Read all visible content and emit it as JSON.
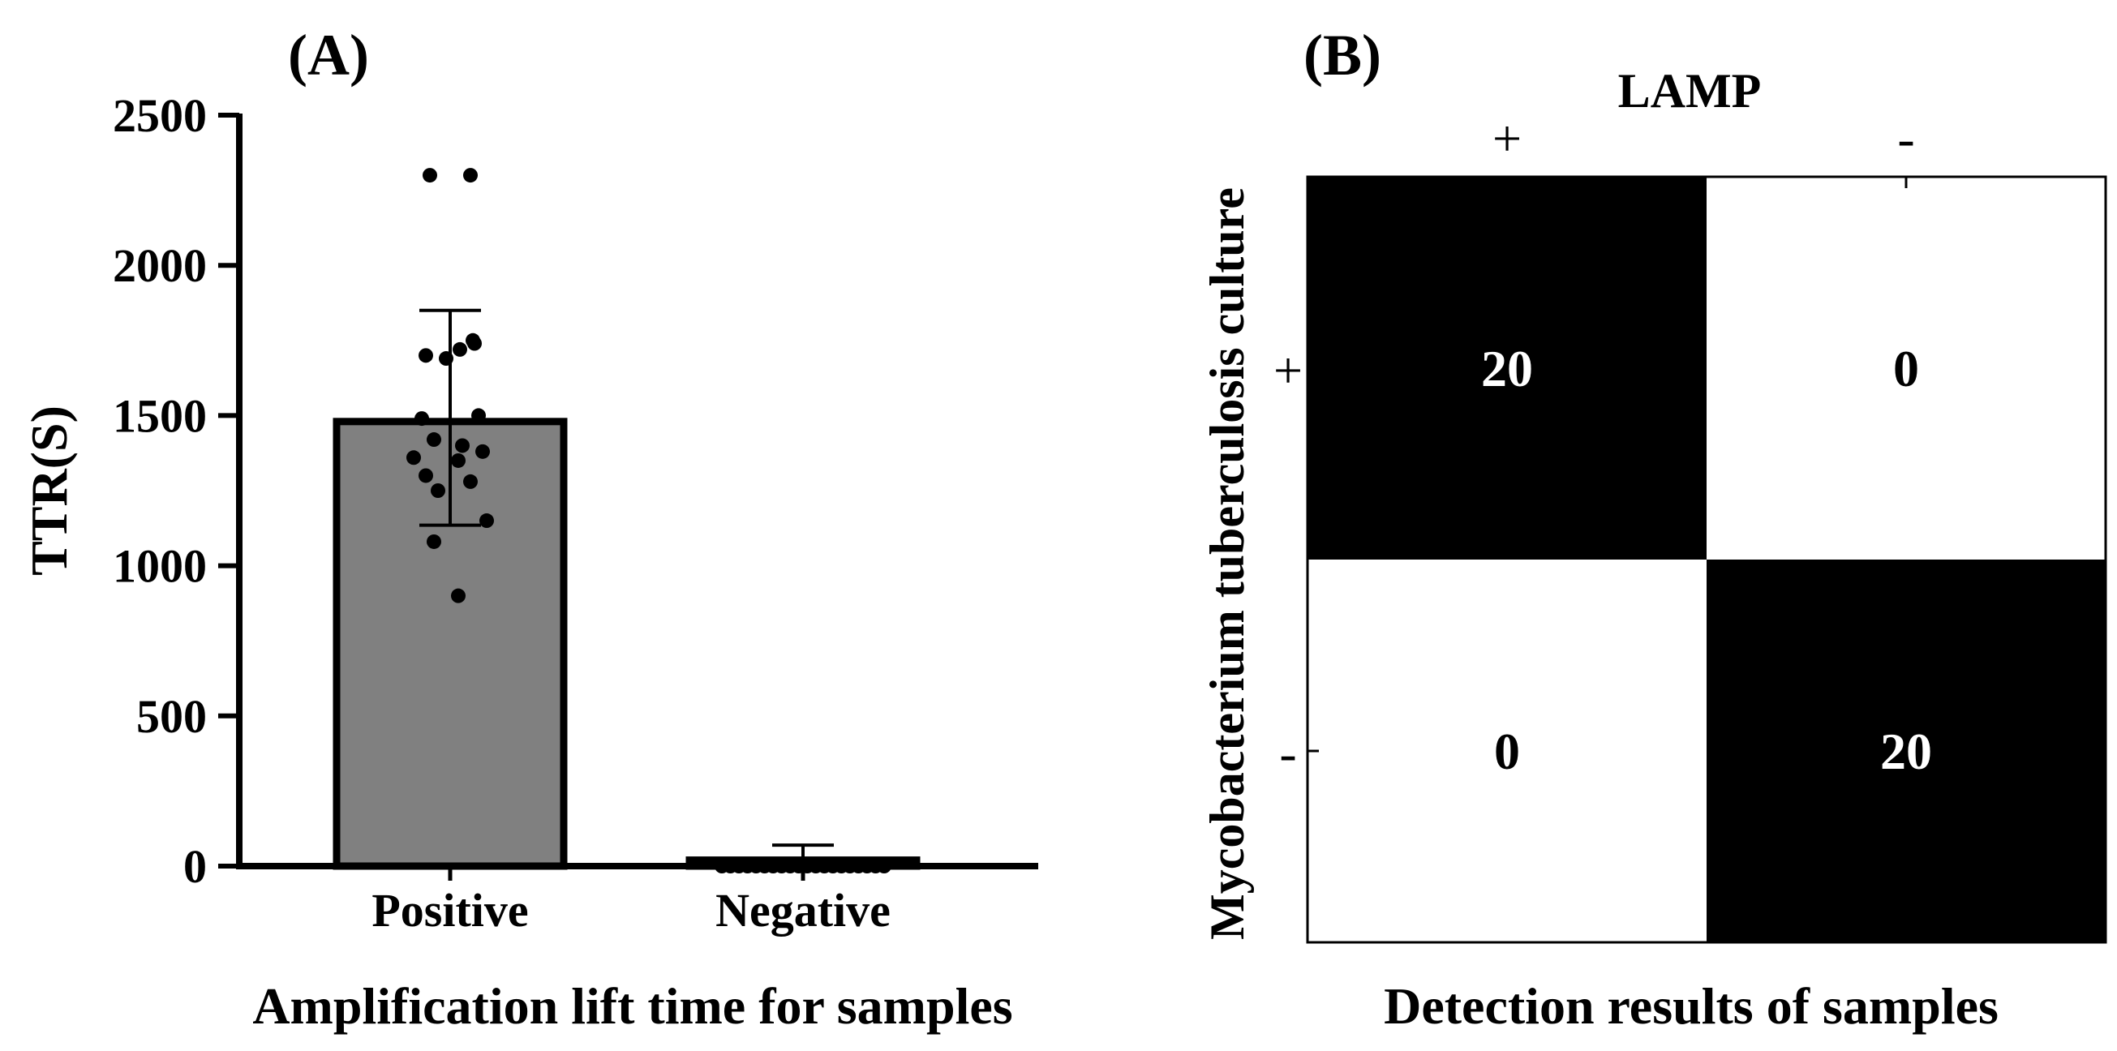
{
  "chart_data": [
    {
      "panel_label": "(A)",
      "type": "bar",
      "title": "",
      "xlabel": "Amplification lift time for samples",
      "ylabel": "TTR(S)",
      "ylim": [
        0,
        2500
      ],
      "yticks": [
        "0",
        "500",
        "1000",
        "1500",
        "2000",
        "2500"
      ],
      "ytick_values": [
        0,
        500,
        1000,
        1500,
        2000,
        2500
      ],
      "categories": [
        "Positive",
        "Negative"
      ],
      "values": [
        1480,
        20
      ],
      "error": [
        {
          "low": 1135,
          "high": 1850
        },
        {
          "low": 0,
          "high": 70
        }
      ],
      "bar_color": "#808080",
      "points": [
        {
          "category": "Positive",
          "values": [
            2300,
            2300,
            1750,
            1720,
            1700,
            1690,
            1740,
            1500,
            1490,
            1420,
            1400,
            1380,
            1360,
            1350,
            1300,
            1280,
            1250,
            1150,
            1080,
            900
          ]
        },
        {
          "category": "Negative",
          "values": [
            0,
            0,
            0,
            0,
            0,
            0,
            0,
            0,
            0,
            0,
            0,
            0,
            0,
            0,
            0,
            0,
            0,
            0,
            0,
            0
          ]
        }
      ]
    },
    {
      "panel_label": "(B)",
      "type": "heatmap",
      "title": "LAMP",
      "xlabel": "Detection results of  samples",
      "ylabel": "Mycobacterium tuberculosis culture",
      "col_labels": [
        "+",
        "-"
      ],
      "row_labels": [
        "+",
        "-"
      ],
      "matrix": [
        [
          20,
          0
        ],
        [
          0,
          20
        ]
      ],
      "cell_labels": [
        [
          "20",
          "0"
        ],
        [
          "0",
          "20"
        ]
      ],
      "high_color": "#000000",
      "low_color": "#ffffff"
    }
  ]
}
